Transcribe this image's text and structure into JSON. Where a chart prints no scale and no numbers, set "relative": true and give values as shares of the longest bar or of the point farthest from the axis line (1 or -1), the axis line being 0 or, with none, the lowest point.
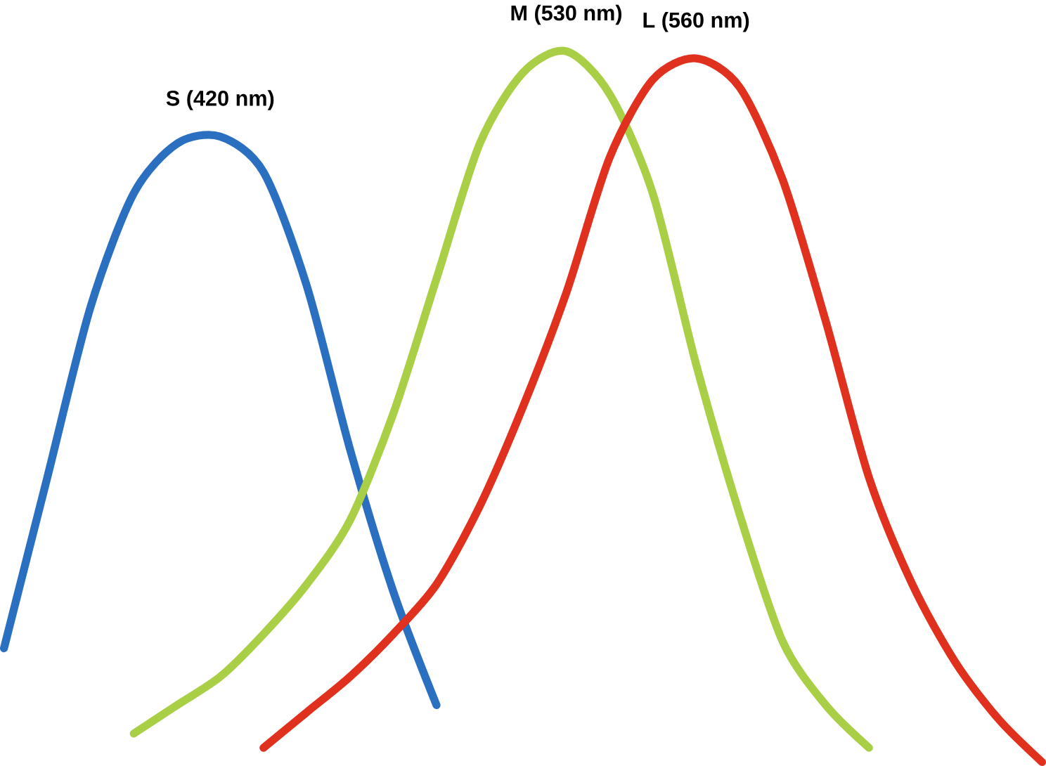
{
  "chart_data": {
    "type": "line",
    "relative": true,
    "legend": false,
    "marker": "none",
    "line_style": "solid",
    "categories": [
      null,
      null,
      null,
      null,
      null,
      null,
      null,
      null,
      null,
      null,
      null,
      null,
      null,
      null,
      null,
      null,
      null,
      null,
      null,
      null,
      null,
      null,
      null,
      null,
      null
    ],
    "series": [
      {
        "name": "S (420 nm)",
        "color": "#2a6fc0",
        "values": [
          0.16,
          0.4,
          0.64,
          0.8,
          0.87,
          0.88,
          0.83,
          0.67,
          0.44,
          0.24,
          0.08,
          null,
          null,
          null,
          null,
          null,
          null,
          null,
          null,
          null,
          null,
          null,
          null,
          null,
          null
        ]
      },
      {
        "name": "M (530 nm)",
        "color": "#a8cf45",
        "values": [
          null,
          null,
          null,
          0.04,
          0.08,
          0.12,
          0.18,
          0.25,
          0.34,
          0.49,
          0.68,
          0.87,
          0.97,
          1.0,
          0.94,
          0.8,
          0.56,
          0.35,
          0.17,
          0.08,
          0.02,
          null,
          null,
          null,
          null
        ]
      },
      {
        "name": "L (560 nm)",
        "color": "#e0301e",
        "values": [
          null,
          null,
          null,
          null,
          null,
          null,
          0.02,
          0.07,
          0.12,
          0.18,
          0.25,
          0.36,
          0.5,
          0.66,
          0.85,
          0.96,
          0.99,
          0.95,
          0.82,
          0.62,
          0.4,
          0.25,
          0.14,
          0.06,
          0.0
        ]
      }
    ]
  }
}
